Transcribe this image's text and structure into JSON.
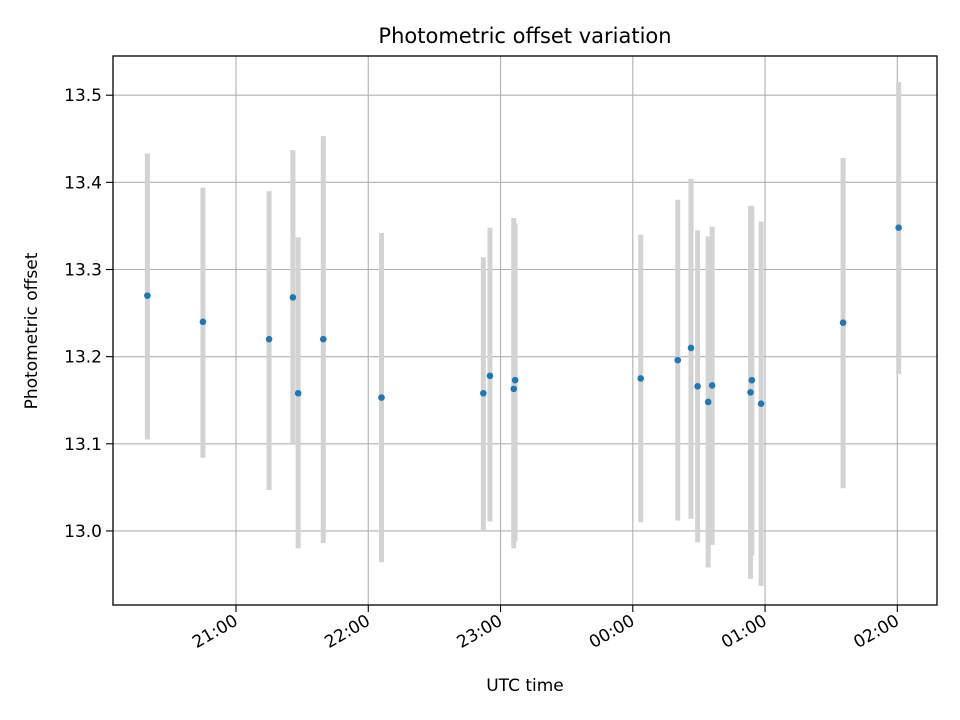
{
  "chart_data": {
    "type": "scatter",
    "title": "Photometric offset variation",
    "xlabel": "UTC time",
    "ylabel": "Photometric offset",
    "x_tick_labels": [
      "21:00",
      "22:00",
      "23:00",
      "00:00",
      "01:00",
      "02:00"
    ],
    "x_tick_hours": [
      21,
      22,
      23,
      24,
      25,
      26
    ],
    "xlim_hours": [
      20.07,
      26.3
    ],
    "ylim": [
      12.915,
      13.545
    ],
    "y_ticks": [
      13.0,
      13.1,
      13.2,
      13.3,
      13.4,
      13.5
    ],
    "y_tick_labels": [
      "13.0",
      "13.1",
      "13.2",
      "13.3",
      "13.4",
      "13.5"
    ],
    "grid": true,
    "colors": {
      "point": "#1f77b4",
      "errorbar": "#d3d3d3",
      "grid": "#b0b0b0"
    },
    "series": [
      {
        "points": [
          {
            "time": "20:19",
            "hour": 20.33,
            "y": 13.27,
            "lo": 13.105,
            "hi": 13.433
          },
          {
            "time": "20:45",
            "hour": 20.75,
            "y": 13.24,
            "lo": 13.084,
            "hi": 13.394
          },
          {
            "time": "21:15",
            "hour": 21.25,
            "y": 13.22,
            "lo": 13.047,
            "hi": 13.39
          },
          {
            "time": "21:25",
            "hour": 21.43,
            "y": 13.268,
            "lo": 13.1,
            "hi": 13.437
          },
          {
            "time": "21:28",
            "hour": 21.47,
            "y": 13.158,
            "lo": 12.98,
            "hi": 13.337
          },
          {
            "time": "21:39",
            "hour": 21.66,
            "y": 13.22,
            "lo": 12.986,
            "hi": 13.453
          },
          {
            "time": "22:06",
            "hour": 22.1,
            "y": 13.153,
            "lo": 12.964,
            "hi": 13.342
          },
          {
            "time": "22:52",
            "hour": 22.87,
            "y": 13.158,
            "lo": 13.001,
            "hi": 13.314
          },
          {
            "time": "22:55",
            "hour": 22.92,
            "y": 13.178,
            "lo": 13.011,
            "hi": 13.348
          },
          {
            "time": "23:06",
            "hour": 23.1,
            "y": 13.163,
            "lo": 12.98,
            "hi": 13.359
          },
          {
            "time": "23:06",
            "hour": 23.11,
            "y": 13.173,
            "lo": 12.988,
            "hi": 13.353
          },
          {
            "time": "00:04",
            "hour": 24.06,
            "y": 13.175,
            "lo": 13.01,
            "hi": 13.34
          },
          {
            "time": "00:20",
            "hour": 24.34,
            "y": 13.196,
            "lo": 13.012,
            "hi": 13.38
          },
          {
            "time": "00:26",
            "hour": 24.44,
            "y": 13.21,
            "lo": 13.014,
            "hi": 13.404
          },
          {
            "time": "00:29",
            "hour": 24.49,
            "y": 13.166,
            "lo": 12.987,
            "hi": 13.345
          },
          {
            "time": "00:34",
            "hour": 24.57,
            "y": 13.148,
            "lo": 12.958,
            "hi": 13.338
          },
          {
            "time": "00:36",
            "hour": 24.6,
            "y": 13.167,
            "lo": 12.984,
            "hi": 13.349
          },
          {
            "time": "00:53",
            "hour": 24.89,
            "y": 13.159,
            "lo": 12.945,
            "hi": 13.373
          },
          {
            "time": "00:54",
            "hour": 24.9,
            "y": 13.173,
            "lo": 12.972,
            "hi": 13.373
          },
          {
            "time": "00:58",
            "hour": 24.97,
            "y": 13.146,
            "lo": 12.937,
            "hi": 13.355
          },
          {
            "time": "01:35",
            "hour": 25.59,
            "y": 13.239,
            "lo": 13.049,
            "hi": 13.428
          },
          {
            "time": "02:01",
            "hour": 26.01,
            "y": 13.348,
            "lo": 13.18,
            "hi": 13.515
          }
        ]
      }
    ]
  }
}
